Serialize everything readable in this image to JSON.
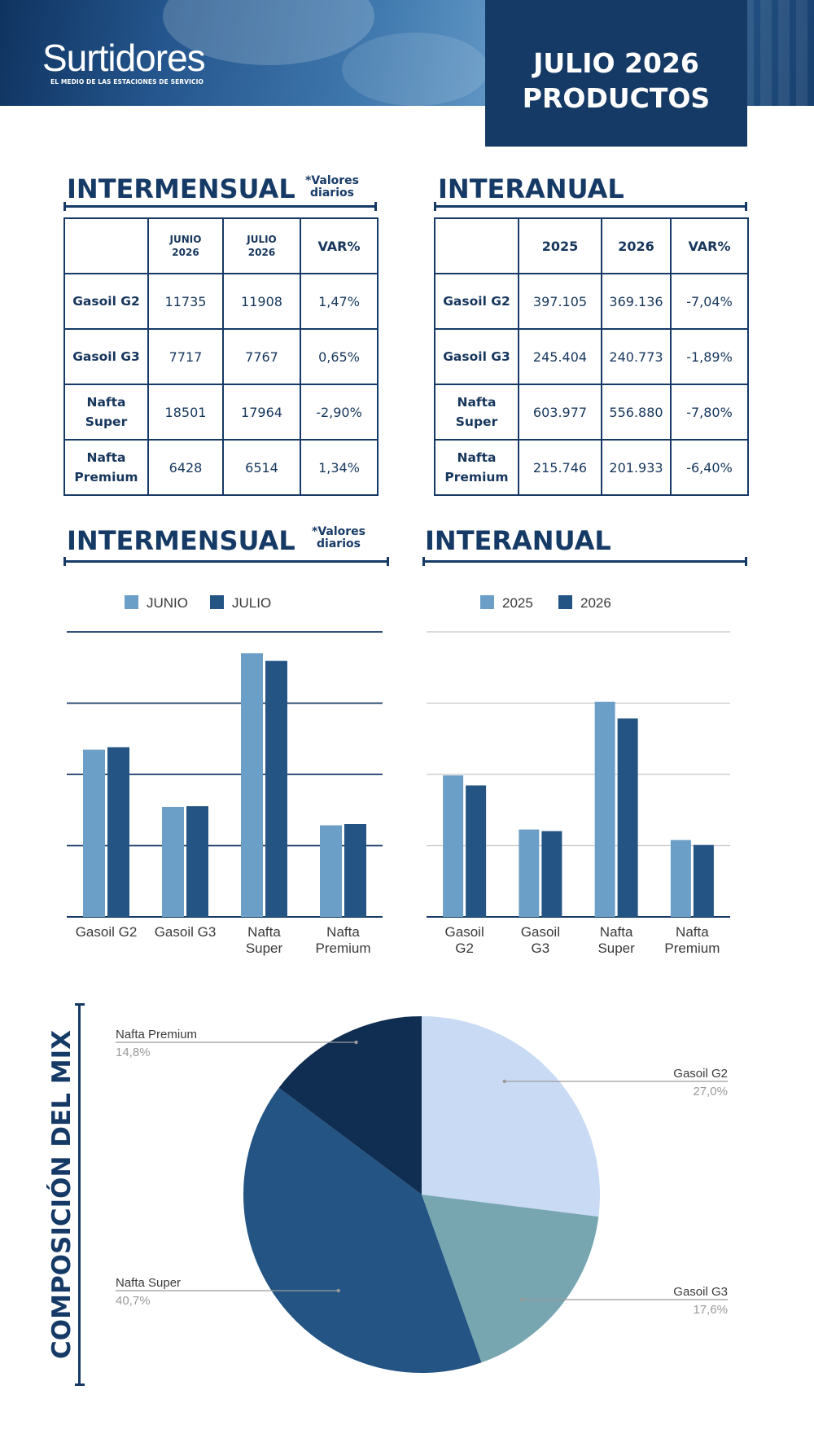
{
  "header": {
    "brand": "Surtidores",
    "tagline": "EL MEDIO DE LAS ESTACIONES DE SERVICIO",
    "title_line1": "JULIO 2026",
    "title_line2": "PRODUCTOS"
  },
  "intermensual": {
    "title": "INTERMENSUAL",
    "note_line1": "*Valores",
    "note_line2": "diarios",
    "table": {
      "headers": [
        [
          "JUNIO",
          "2026"
        ],
        [
          "JULIO",
          "2026"
        ],
        "VAR%"
      ],
      "rows": [
        {
          "label": [
            "Gasoil G2"
          ],
          "values": [
            "11735",
            "11908",
            "1,47%"
          ]
        },
        {
          "label": [
            "Gasoil G3"
          ],
          "values": [
            "7717",
            "7767",
            "0,65%"
          ]
        },
        {
          "label": [
            "Nafta",
            "Super"
          ],
          "values": [
            "18501",
            "17964",
            "-2,90%"
          ]
        },
        {
          "label": [
            "Nafta",
            "Premium"
          ],
          "values": [
            "6428",
            "6514",
            "1,34%"
          ]
        }
      ]
    }
  },
  "interanual": {
    "title": "INTERANUAL",
    "table": {
      "headers": [
        "2025",
        "2026",
        "VAR%"
      ],
      "rows": [
        {
          "label": [
            "Gasoil G2"
          ],
          "values": [
            "397.105",
            "369.136",
            "-7,04%"
          ]
        },
        {
          "label": [
            "Gasoil G3"
          ],
          "values": [
            "245.404",
            "240.773",
            "-1,89%"
          ]
        },
        {
          "label": [
            "Nafta",
            "Super"
          ],
          "values": [
            "603.977",
            "556.880",
            "-7,80%"
          ]
        },
        {
          "label": [
            "Nafta",
            "Premium"
          ],
          "values": [
            "215.746",
            "201.933",
            "-6,40%"
          ]
        }
      ]
    }
  },
  "mix": {
    "title": "COMPOSICIÓN DEL MIX"
  },
  "colors": {
    "navy": "#163a66",
    "series_light": "#6b9fc7",
    "series_dark": "#235483",
    "pie_g2": "#c9daf5",
    "pie_g3": "#77a6b1",
    "pie_super": "#235483",
    "pie_premium": "#102e52"
  },
  "chart_data": [
    {
      "type": "bar",
      "categories": [
        [
          "Gasoil G2"
        ],
        [
          "Gasoil G3"
        ],
        [
          "Nafta",
          "Super"
        ],
        [
          "Nafta",
          "Premium"
        ]
      ],
      "series": [
        {
          "name": "JUNIO",
          "values": [
            11735,
            7717,
            18501,
            6428
          ]
        },
        {
          "name": "JULIO",
          "values": [
            11908,
            7767,
            17964,
            6514
          ]
        }
      ],
      "ylim": [
        0,
        20000
      ],
      "gridlines": [
        5000,
        10000,
        15000,
        20000
      ],
      "legend": "top"
    },
    {
      "type": "bar",
      "categories": [
        [
          "Gasoil",
          "G2"
        ],
        [
          "Gasoil",
          "G3"
        ],
        [
          "Nafta",
          "Super"
        ],
        [
          "Nafta",
          "Premium"
        ]
      ],
      "series": [
        {
          "name": "2025",
          "values": [
            397105,
            245404,
            603977,
            215746
          ]
        },
        {
          "name": "2026",
          "values": [
            369136,
            240773,
            556880,
            201933
          ]
        }
      ],
      "ylim": [
        0,
        800000
      ],
      "gridlines": [
        200000,
        400000,
        600000,
        800000
      ],
      "legend": "top"
    },
    {
      "type": "pie",
      "slices": [
        {
          "label": "Gasoil G2",
          "value": 27.0,
          "display": "27,0%"
        },
        {
          "label": "Gasoil G3",
          "value": 17.6,
          "display": "17,6%"
        },
        {
          "label": "Nafta Super",
          "value": 40.7,
          "display": "40,7%"
        },
        {
          "label": "Nafta Premium",
          "value": 14.8,
          "display": "14,8%"
        }
      ],
      "start_angle_deg": 0,
      "direction": "clockwise"
    }
  ]
}
